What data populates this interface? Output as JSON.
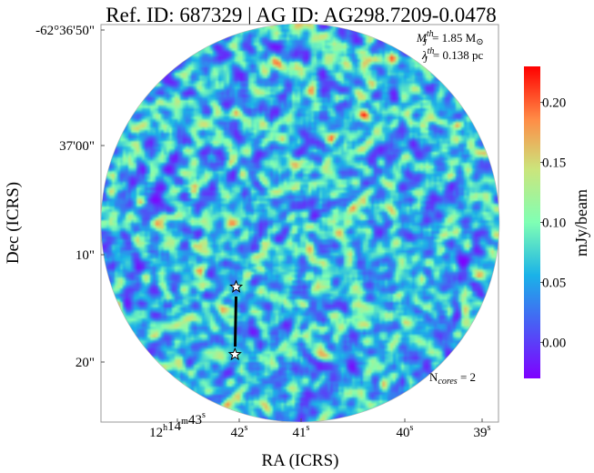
{
  "chart_data": {
    "type": "heatmap",
    "title": "Ref. ID: 687329 | AG ID: AG298.7209-0.0478",
    "xlabel": "RA (ICRS)",
    "ylabel": "Dec (ICRS)",
    "x_ticks": [
      {
        "label_parts": [
          "12",
          "h",
          "14",
          "m",
          "43",
          "s"
        ]
      },
      {
        "label_parts": [
          "",
          "",
          "",
          "",
          "42",
          "s"
        ]
      },
      {
        "label_parts": [
          "",
          "",
          "",
          "",
          "41",
          "s"
        ]
      },
      {
        "label_parts": [
          "",
          "",
          "",
          "",
          "40",
          "s"
        ]
      },
      {
        "label_parts": [
          "",
          "",
          "",
          "",
          "39",
          "s"
        ]
      }
    ],
    "y_ticks": [
      {
        "label": "-62°36'50\""
      },
      {
        "label": "37'00\""
      },
      {
        "label": "10\""
      },
      {
        "label": "20\""
      }
    ],
    "colorbar": {
      "label": "mJy/beam",
      "colormap": "rainbow",
      "min": -0.03,
      "max": 0.23,
      "ticks": [
        "0.00",
        "0.05",
        "0.10",
        "0.15",
        "0.20"
      ],
      "tick_values": [
        0.0,
        0.05,
        0.1,
        0.15,
        0.2
      ]
    },
    "annotations": {
      "mass_symbol": "M",
      "mass_sub": "J",
      "mass_sup": "th",
      "mass_value": "= 1.85 M",
      "mass_unit_symbol": "⊙",
      "length_symbol": "λ",
      "length_sub": "J",
      "length_sup": "th",
      "length_value": "= 0.138 pc",
      "ncores_prefix": "N",
      "ncores_sub": "cores",
      "ncores_value": " = 2"
    },
    "cores": [
      {
        "name": "core-1",
        "ra_frac": 0.34,
        "dec_frac": 0.66
      },
      {
        "name": "core-2",
        "ra_frac": 0.337,
        "dec_frac": 0.83
      }
    ]
  }
}
